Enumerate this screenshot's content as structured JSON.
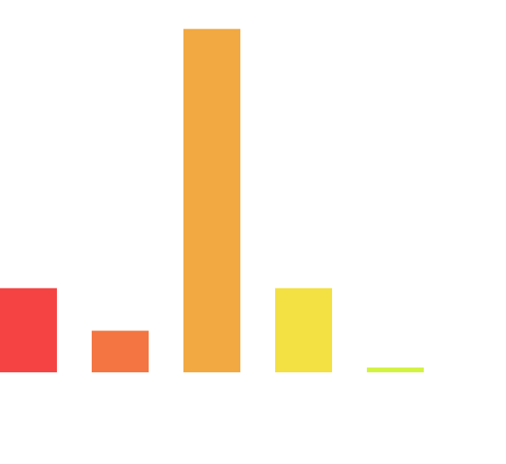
{
  "chart_data": {
    "type": "bar",
    "categories": [
      "",
      "",
      "",
      "",
      ""
    ],
    "values": [
      8.7,
      4.3,
      35.5,
      8.7,
      0.5
    ],
    "ylim": [
      0,
      38
    ],
    "grid": false,
    "legend": "none",
    "title": "",
    "xlabel": "",
    "ylabel": "",
    "colors": [
      "#f54343",
      "#f47542",
      "#f2a942",
      "#f3e042",
      "#d3f342"
    ]
  }
}
